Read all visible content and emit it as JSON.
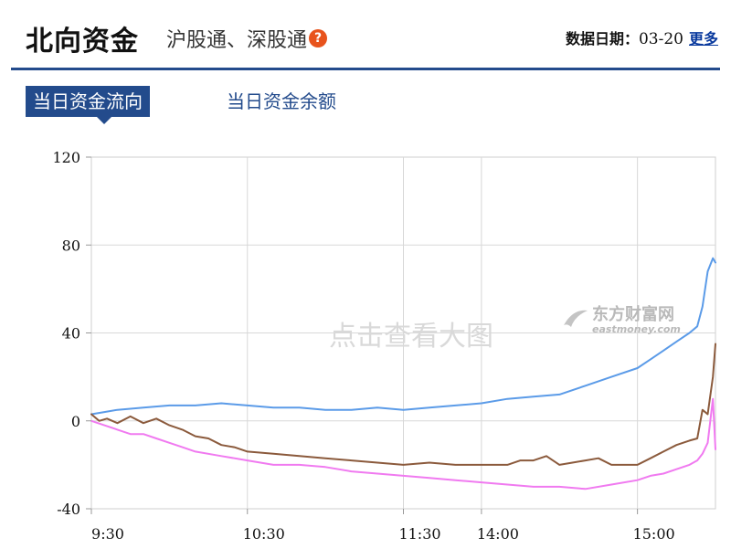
{
  "header": {
    "title": "北向资金",
    "subtitle": "沪股通、深股通",
    "help_icon": "question-icon",
    "date_label": "数据日期：",
    "date_value": "03-20",
    "more_link": "更多"
  },
  "tabs": [
    {
      "label": "当日资金流向",
      "active": true
    },
    {
      "label": "当日资金余额",
      "active": false
    }
  ],
  "chart": {
    "watermark": "点击查看大图",
    "logo_text": "东方财富网",
    "logo_sub": "eastmoney.com"
  },
  "colors": {
    "brand_blue": "#234b8c",
    "series_blue": "#5b9be8",
    "series_brown": "#8b5a3c",
    "series_magenta": "#f07af0",
    "help_orange": "#e8531c"
  },
  "chart_data": {
    "type": "line",
    "title": "",
    "xlabel": "",
    "ylabel": "",
    "ylim": [
      -40,
      120
    ],
    "y_ticks": [
      "120",
      "80",
      "40",
      "0",
      "-40"
    ],
    "y_tick_values": [
      120,
      80,
      40,
      0,
      -40
    ],
    "x_ticks": [
      "9:30",
      "10:30",
      "11:30",
      "14:00",
      "15:00"
    ],
    "x_tick_minutes": [
      0,
      60,
      120,
      150,
      210
    ],
    "x_range_minutes": [
      0,
      240
    ],
    "grid": true,
    "series": [
      {
        "color": "#5b9be8",
        "x": [
          0,
          5,
          10,
          20,
          30,
          40,
          50,
          60,
          70,
          80,
          90,
          100,
          110,
          120,
          130,
          140,
          150,
          160,
          170,
          180,
          190,
          200,
          210,
          215,
          220,
          225,
          230,
          233,
          235,
          237,
          239,
          240
        ],
        "y": [
          3,
          4,
          5,
          6,
          7,
          7,
          8,
          7,
          6,
          6,
          5,
          5,
          6,
          5,
          6,
          7,
          8,
          10,
          11,
          12,
          16,
          20,
          24,
          28,
          32,
          36,
          40,
          43,
          52,
          68,
          74,
          72
        ]
      },
      {
        "color": "#8b5a3c",
        "x": [
          0,
          3,
          6,
          10,
          15,
          20,
          25,
          30,
          35,
          40,
          45,
          50,
          55,
          60,
          70,
          80,
          90,
          100,
          110,
          120,
          130,
          140,
          150,
          155,
          160,
          165,
          170,
          175,
          180,
          185,
          190,
          195,
          200,
          205,
          210,
          215,
          220,
          225,
          230,
          233,
          235,
          237,
          239,
          240
        ],
        "y": [
          3,
          0,
          1,
          -1,
          2,
          -1,
          1,
          -2,
          -4,
          -7,
          -8,
          -11,
          -12,
          -14,
          -15,
          -16,
          -17,
          -18,
          -19,
          -20,
          -19,
          -20,
          -20,
          -20,
          -20,
          -18,
          -18,
          -16,
          -20,
          -19,
          -18,
          -17,
          -20,
          -20,
          -20,
          -17,
          -14,
          -11,
          -9,
          -8,
          5,
          3,
          20,
          35
        ]
      },
      {
        "color": "#f07af0",
        "x": [
          0,
          5,
          10,
          15,
          20,
          25,
          30,
          35,
          40,
          50,
          60,
          70,
          80,
          90,
          100,
          110,
          120,
          130,
          140,
          150,
          160,
          170,
          180,
          190,
          200,
          210,
          215,
          220,
          225,
          230,
          233,
          235,
          237,
          239,
          240
        ],
        "y": [
          0,
          -2,
          -4,
          -6,
          -6,
          -8,
          -10,
          -12,
          -14,
          -16,
          -18,
          -20,
          -20,
          -21,
          -23,
          -24,
          -25,
          -26,
          -27,
          -28,
          -29,
          -30,
          -30,
          -31,
          -29,
          -27,
          -25,
          -24,
          -22,
          -20,
          -18,
          -15,
          -10,
          10,
          -13
        ]
      }
    ]
  }
}
